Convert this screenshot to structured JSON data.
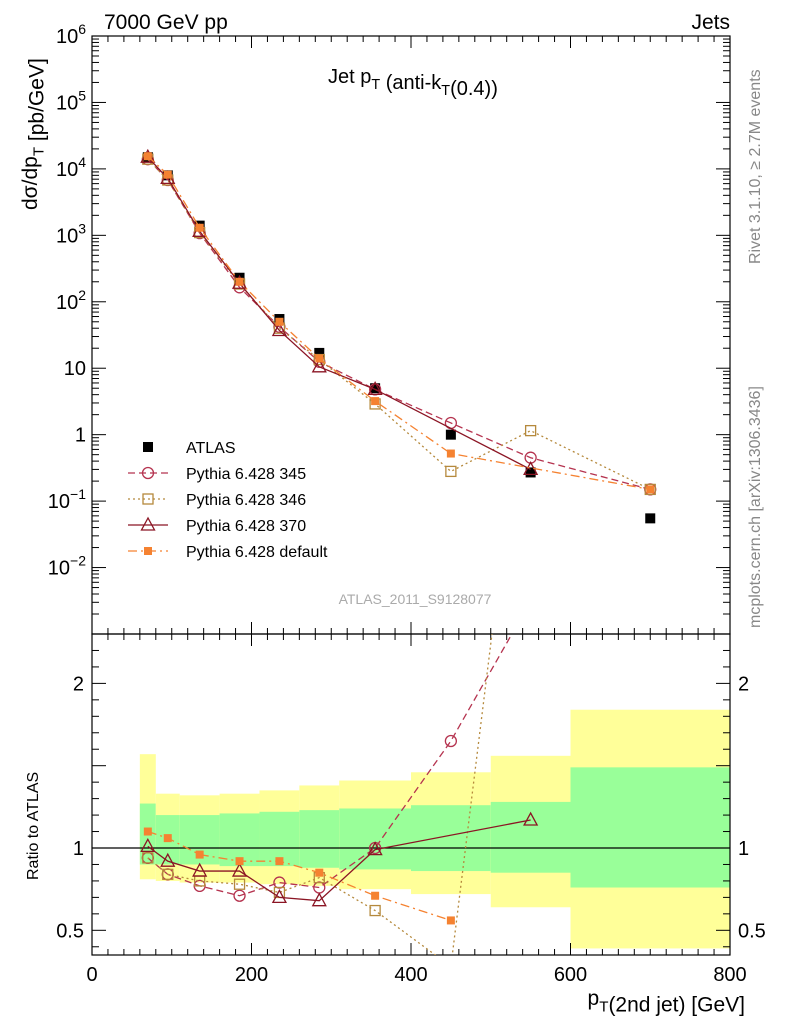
{
  "header": {
    "left": "7000 GeV pp",
    "right": "Jets"
  },
  "side": {
    "top": "Rivet 3.1.10, ≥ 2.7M events",
    "bottom": "mcplots.cern.ch [arXiv:1306.3436]"
  },
  "main_title": "Jet p_T (anti-k_T(0.4))",
  "main_ylabel": "dσ/dp_T [pb/GeV]",
  "ratio_ylabel": "Ratio to ATLAS",
  "xlabel": "p_T(2nd jet) [GeV]",
  "analysis_tag": "ATLAS_2011_S9128077",
  "colors": {
    "atlas": "#000000",
    "p345": "#b5334f",
    "p346": "#b5893c",
    "p370": "#8b1524",
    "pdefault": "#f58231",
    "band_inner": "#99ff99",
    "band_outer": "#ffff99"
  },
  "chart_data": [
    {
      "type": "scatter",
      "name": "main",
      "ylog": true,
      "xlim": [
        0,
        800
      ],
      "ylim": [
        0.001,
        1000000
      ],
      "x_ticks": [
        0,
        200,
        400,
        600,
        800
      ],
      "y_tick_labels": [
        "10^-2",
        "10^-1",
        "1",
        "10",
        "10^2",
        "10^3",
        "10^4",
        "10^5",
        "10^6"
      ],
      "legend_position": "lower-left",
      "x": [
        70,
        95,
        135,
        185,
        235,
        285,
        355,
        450,
        550,
        700
      ],
      "series": [
        {
          "name": "ATLAS",
          "key": "atlas",
          "marker": "filled-square",
          "line": "none",
          "values": [
            15000,
            8000,
            1400,
            230,
            55,
            17,
            5,
            1.0,
            0.27,
            0.055
          ]
        },
        {
          "name": "Pythia 6.428 345",
          "key": "p345",
          "marker": "open-circle",
          "line": "dashed",
          "values": [
            14000,
            6800,
            1080,
            165,
            42,
            12.5,
            4.8,
            1.5,
            0.45,
            0.15
          ]
        },
        {
          "name": "Pythia 6.428 346",
          "key": "p346",
          "marker": "open-square",
          "line": "dotted",
          "values": [
            14000,
            6800,
            1100,
            185,
            40,
            13.5,
            2.9,
            0.28,
            1.15,
            0.15
          ]
        },
        {
          "name": "Pythia 6.428 370",
          "key": "p370",
          "marker": "open-triangle",
          "line": "solid",
          "values": [
            15000,
            7200,
            1150,
            190,
            37,
            10.5,
            4.8,
            null,
            0.3,
            null
          ]
        },
        {
          "name": "Pythia 6.428 default",
          "key": "pdefault",
          "marker": "small-filled-square",
          "line": "dashdot",
          "values": [
            15500,
            8200,
            1300,
            200,
            50,
            14,
            3.2,
            0.52,
            null,
            0.15
          ]
        }
      ]
    },
    {
      "type": "line",
      "name": "ratio",
      "xlim": [
        0,
        800
      ],
      "ylim": [
        0.35,
        2.3
      ],
      "y_ticks": [
        0.5,
        1,
        2
      ],
      "bands": {
        "edges": [
          60,
          80,
          110,
          160,
          210,
          260,
          310,
          400,
          500,
          600,
          800
        ],
        "inner_lo": [
          0.9,
          0.9,
          0.9,
          0.89,
          0.89,
          0.88,
          0.87,
          0.86,
          0.85,
          0.76
        ],
        "inner_hi": [
          1.27,
          1.2,
          1.2,
          1.21,
          1.22,
          1.23,
          1.24,
          1.26,
          1.28,
          1.49
        ],
        "outer_lo": [
          0.81,
          0.8,
          0.79,
          0.79,
          0.78,
          0.77,
          0.75,
          0.72,
          0.64,
          0.39
        ],
        "outer_hi": [
          1.57,
          1.33,
          1.32,
          1.33,
          1.35,
          1.38,
          1.41,
          1.46,
          1.56,
          1.84
        ]
      },
      "x": [
        70,
        95,
        135,
        185,
        235,
        285,
        355,
        450,
        550,
        700
      ],
      "series": [
        {
          "name": "Pythia 6.428 345",
          "key": "p345",
          "values": [
            0.94,
            0.84,
            0.77,
            0.71,
            0.79,
            0.76,
            1.0,
            1.65,
            2.5,
            null
          ]
        },
        {
          "name": "Pythia 6.428 346",
          "key": "p346",
          "values": [
            0.94,
            0.84,
            0.8,
            0.78,
            0.73,
            0.82,
            0.62,
            0.28,
            4.2,
            null
          ]
        },
        {
          "name": "Pythia 6.428 370",
          "key": "p370",
          "values": [
            1.01,
            0.92,
            0.86,
            0.86,
            0.7,
            0.68,
            0.99,
            null,
            1.17,
            null
          ]
        },
        {
          "name": "Pythia 6.428 default",
          "key": "pdefault",
          "values": [
            1.1,
            1.06,
            0.96,
            0.92,
            0.92,
            0.85,
            0.71,
            0.56,
            null,
            null
          ]
        }
      ]
    }
  ]
}
